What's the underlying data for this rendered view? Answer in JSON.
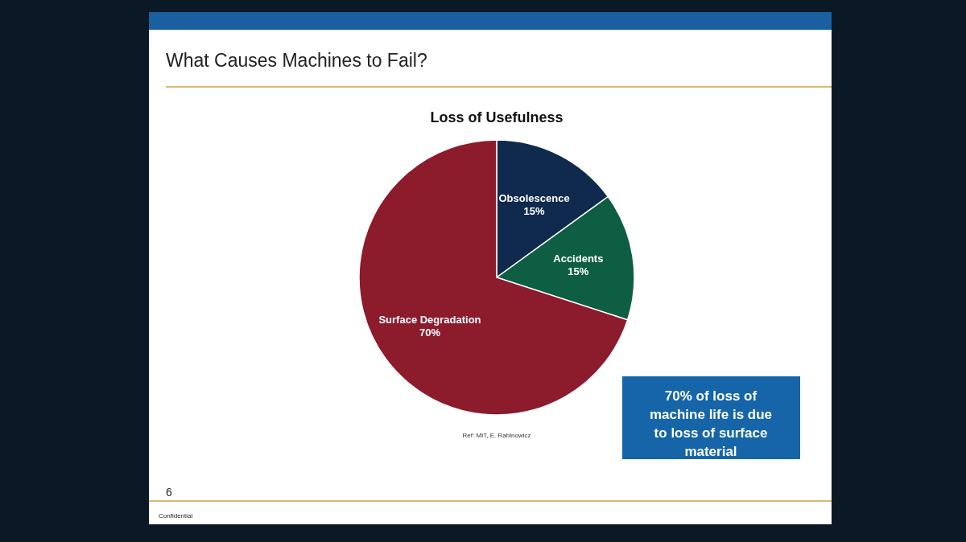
{
  "chart_data": {
    "type": "pie",
    "title": "What Causes Machines to Fail?",
    "subtitle": "Loss of Usefulness",
    "categories": [
      "Obsolescence",
      "Accidents",
      "Surface Degradation"
    ],
    "values": [
      15,
      15,
      70
    ],
    "colors": [
      "#0f2a4c",
      "#0e5e44",
      "#8c1b2c"
    ],
    "value_labels": [
      "15%",
      "15%",
      "70%"
    ],
    "annotations": [
      "70% of loss of machine life is due to loss of surface material",
      "Ref: MIT, E. Rabinowicz",
      "6",
      "Confidential"
    ]
  }
}
